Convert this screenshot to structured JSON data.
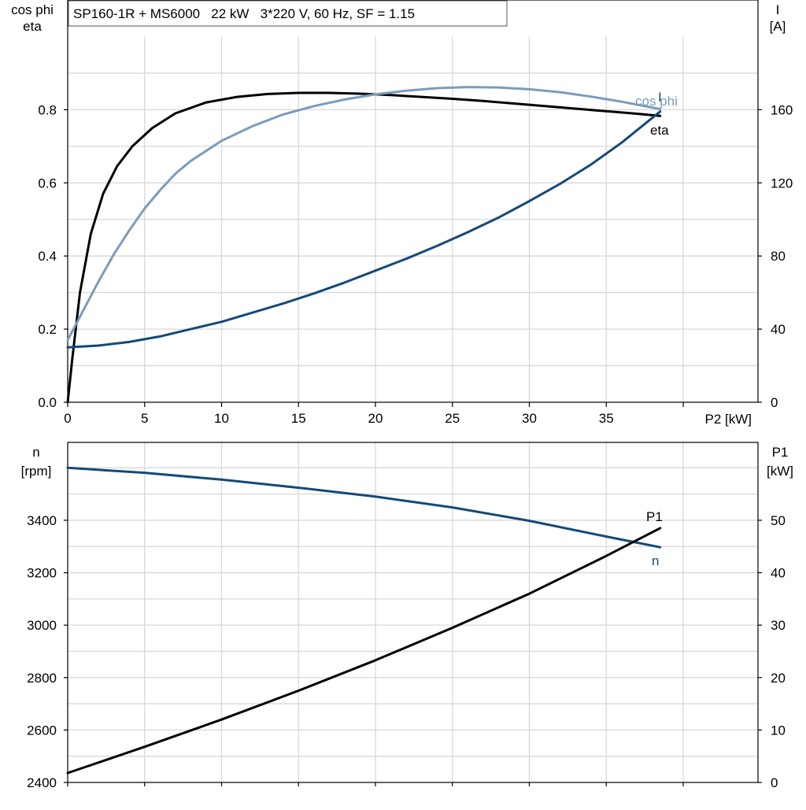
{
  "colors": {
    "eta": "#000000",
    "cos_phi": "#7a9cbb",
    "current": "#14497a",
    "speed": "#14497a",
    "power_input": "#000000",
    "grid": "#d8d8d8"
  },
  "chart_data": [
    {
      "type": "line",
      "title": "SP160-1R + MS6000   22 kW   3*220 V, 60 Hz, SF = 1.15",
      "xlabel": "P2 [kW]",
      "xlim": [
        0,
        45
      ],
      "xticks": [
        0,
        5,
        10,
        15,
        20,
        25,
        30,
        35
      ],
      "y_left_label": [
        "cos phi",
        "eta"
      ],
      "y_left_lim": [
        0,
        1.0
      ],
      "y_left_ticks": [
        "0.0",
        "0.2",
        "0.4",
        "0.6",
        "0.8"
      ],
      "y_right_label": [
        "I",
        "[A]"
      ],
      "y_right_lim": [
        0,
        200
      ],
      "y_right_ticks": [
        "0",
        "40",
        "80",
        "120",
        "160"
      ],
      "grid": true,
      "series": [
        {
          "name": "eta",
          "axis": "left",
          "x": [
            0,
            0.3,
            0.8,
            1.5,
            2.3,
            3.2,
            4.2,
            5.5,
            7,
            9,
            11,
            13,
            15,
            17,
            19,
            21,
            23,
            25,
            27,
            29,
            31,
            33,
            35,
            37,
            38.5
          ],
          "y": [
            0.0,
            0.12,
            0.3,
            0.46,
            0.57,
            0.645,
            0.7,
            0.75,
            0.79,
            0.82,
            0.835,
            0.843,
            0.846,
            0.846,
            0.844,
            0.84,
            0.835,
            0.83,
            0.824,
            0.817,
            0.81,
            0.803,
            0.796,
            0.789,
            0.783
          ]
        },
        {
          "name": "cos phi",
          "axis": "left",
          "x": [
            0,
            1,
            2,
            3,
            4,
            5,
            6,
            7,
            8,
            10,
            12,
            14,
            16,
            18,
            20,
            22,
            24,
            26,
            28,
            30,
            32,
            34,
            36,
            38.5
          ],
          "y": [
            0.17,
            0.25,
            0.33,
            0.405,
            0.47,
            0.53,
            0.58,
            0.625,
            0.66,
            0.715,
            0.755,
            0.787,
            0.81,
            0.828,
            0.842,
            0.852,
            0.859,
            0.862,
            0.861,
            0.856,
            0.848,
            0.836,
            0.822,
            0.802
          ]
        },
        {
          "name": "I",
          "axis": "right",
          "x": [
            0,
            2,
            4,
            6,
            8,
            10,
            12,
            14,
            16,
            18,
            20,
            22,
            24,
            26,
            28,
            30,
            32,
            34,
            36,
            38.5
          ],
          "y": [
            30,
            31,
            33,
            36,
            40,
            44,
            49,
            54,
            59.5,
            65.5,
            72,
            78.5,
            85.5,
            93,
            101,
            110,
            119.5,
            130,
            142,
            159
          ]
        }
      ],
      "labels": [
        "cos phi",
        "I",
        "eta"
      ]
    },
    {
      "type": "line",
      "title": "",
      "xlabel": "",
      "xlim": [
        0,
        45
      ],
      "y_left_label": [
        "n",
        "[rpm]"
      ],
      "y_left_lim": [
        2400,
        3700
      ],
      "y_left_ticks": [
        "2400",
        "2600",
        "2800",
        "3000",
        "3200",
        "3400"
      ],
      "y_right_label": [
        "P1",
        "[kW]"
      ],
      "y_right_lim": [
        0,
        65
      ],
      "y_right_ticks": [
        "0",
        "10",
        "20",
        "30",
        "40",
        "50"
      ],
      "grid": true,
      "series": [
        {
          "name": "n",
          "axis": "left",
          "x": [
            0,
            5,
            10,
            15,
            20,
            25,
            30,
            35,
            38.5
          ],
          "y": [
            3600,
            3581,
            3555,
            3524,
            3490,
            3449,
            3398,
            3338,
            3297
          ]
        },
        {
          "name": "P1",
          "axis": "right",
          "x": [
            0,
            5,
            10,
            15,
            20,
            25,
            30,
            35,
            38.5
          ],
          "y": [
            1.8,
            6.8,
            12.0,
            17.5,
            23.3,
            29.5,
            36.0,
            43.2,
            48.5
          ]
        }
      ],
      "labels": [
        "P1",
        "n"
      ]
    }
  ]
}
